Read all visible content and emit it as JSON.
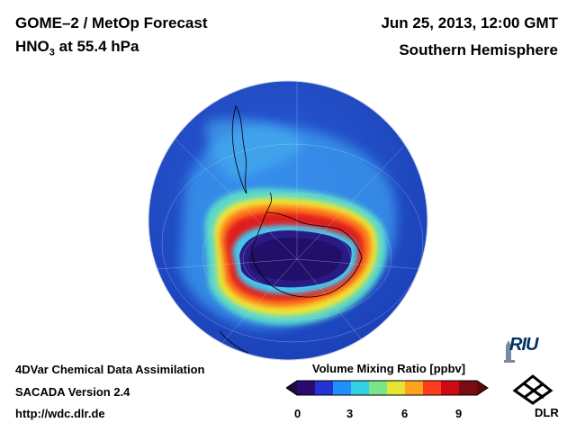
{
  "header": {
    "title": "GOME–2 / MetOp Forecast",
    "species": "HNO",
    "species_sub": "3",
    "level": " at 55.4 hPa",
    "datetime": "Jun 25, 2013, 12:00 GMT",
    "hemisphere": "Southern Hemisphere"
  },
  "credits": {
    "line1": "4DVar Chemical Data Assimilation",
    "line2": "SACADA Version 2.4",
    "line3": "http://wdc.dlr.de"
  },
  "colorbar": {
    "label": "Volume Mixing Ratio [ppbv]",
    "min": 0,
    "max": 10,
    "ticks": [
      "0",
      "3",
      "6",
      "9"
    ],
    "colors": [
      "#2a0a6e",
      "#2333d6",
      "#1e90ff",
      "#32d2e6",
      "#7ae68c",
      "#e6e632",
      "#ffa31e",
      "#ff3c1e",
      "#cd0a14",
      "#7a0a14"
    ]
  },
  "logos": {
    "riu": "RIU",
    "dlr": "DLR"
  }
}
